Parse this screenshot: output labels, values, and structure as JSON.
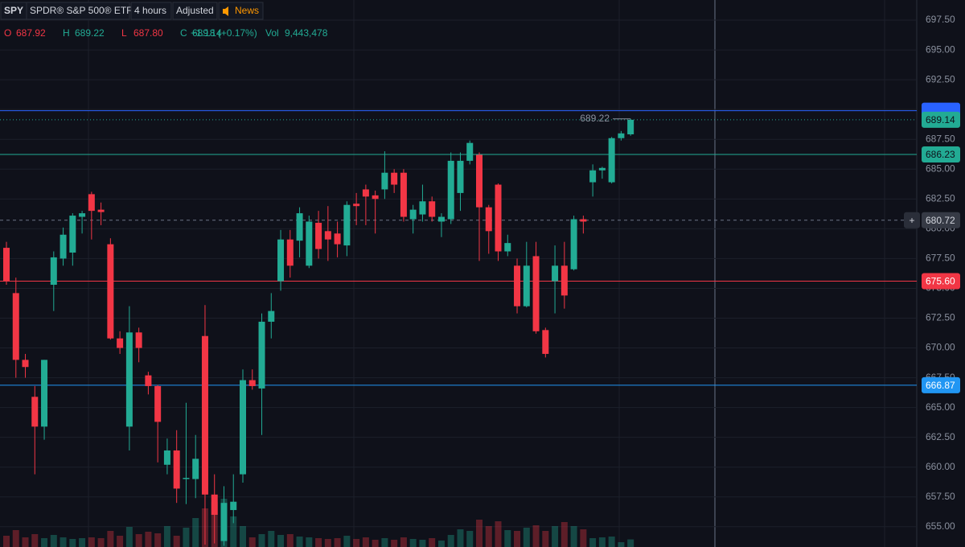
{
  "header": {
    "symbol": "SPY",
    "name": "SPDR® S&P 500® ETF",
    "interval": "4 hours",
    "adjusted": "Adjusted",
    "news": "News",
    "ohlc": [
      {
        "key": "O",
        "label": "687.92",
        "color": "#f23645"
      },
      {
        "key": "H",
        "label": "689.22",
        "color": "#22ab94"
      },
      {
        "key": "L",
        "label": "687.80",
        "color": "#f23645"
      },
      {
        "key": "C",
        "label": "689.14",
        "color": "#22ab94"
      }
    ],
    "change": "+1.18 (+0.17%)",
    "vol_key": "Vol",
    "vol_label": "9,443,478"
  },
  "chart_data": {
    "type": "candlestick",
    "up_color": "#22ab94",
    "down_color": "#f23645",
    "grid": true,
    "open": [
      678.4,
      674.6,
      669.0,
      665.9,
      663.4,
      675.3,
      677.5,
      678.0,
      681.0,
      682.9,
      681.6,
      678.7,
      670.8,
      663.4,
      671.3,
      667.7,
      666.8,
      660.2,
      661.4,
      659.0,
      659.0,
      671.0,
      657.7,
      653.8,
      656.4,
      659.4,
      667.3,
      666.6,
      672.2,
      675.6,
      679.1,
      679.0,
      676.9,
      680.5,
      679.8,
      679.6,
      678.6,
      682.1,
      683.3,
      682.8,
      683.3,
      684.7,
      684.7,
      680.8,
      681.2,
      682.3,
      680.6,
      680.8,
      683.0,
      685.7,
      686.2,
      681.8,
      683.7,
      678.1,
      676.9,
      673.5,
      677.7,
      671.5,
      675.6,
      676.9,
      676.6,
      680.8,
      683.9,
      684.9,
      683.9,
      687.6,
      687.92
    ],
    "high": [
      678.9,
      675.9,
      669.5,
      666.8,
      669.0,
      678.1,
      680.1,
      681.3,
      681.5,
      683.1,
      682.2,
      679.2,
      671.4,
      673.5,
      671.7,
      668.0,
      666.9,
      662.4,
      663.1,
      665.4,
      662.7,
      673.6,
      659.4,
      658.4,
      659.4,
      668.2,
      668.2,
      672.9,
      674.6,
      679.9,
      679.9,
      681.8,
      681.1,
      681.5,
      681.9,
      680.6,
      682.3,
      683.0,
      683.7,
      683.2,
      686.5,
      685.0,
      685.0,
      682.0,
      683.7,
      682.7,
      681.3,
      686.4,
      686.4,
      687.4,
      686.4,
      682.0,
      683.8,
      679.5,
      677.5,
      678.9,
      678.9,
      671.7,
      678.6,
      678.9,
      681.1,
      681.1,
      685.4,
      685.2,
      687.7,
      688.2,
      689.22
    ],
    "low": [
      675.3,
      667.5,
      667.5,
      659.4,
      662.3,
      673.1,
      676.9,
      676.9,
      679.6,
      679.1,
      680.3,
      670.7,
      669.5,
      661.4,
      668.8,
      666.1,
      660.4,
      659.4,
      657.0,
      656.9,
      657.4,
      653.5,
      653.6,
      653.4,
      655.3,
      658.7,
      666.5,
      662.7,
      670.8,
      674.8,
      675.9,
      677.6,
      676.7,
      677.5,
      677.3,
      677.6,
      677.7,
      680.3,
      680.3,
      679.6,
      682.5,
      683.0,
      680.6,
      679.6,
      680.6,
      680.6,
      679.3,
      680.4,
      681.5,
      685.4,
      677.3,
      677.9,
      677.3,
      677.7,
      672.9,
      673.4,
      671.2,
      669.2,
      672.9,
      673.3,
      676.5,
      679.6,
      682.7,
      684.2,
      683.8,
      687.4,
      687.8
    ],
    "close": [
      675.6,
      669.0,
      668.4,
      663.4,
      669.0,
      677.6,
      679.5,
      681.1,
      681.3,
      681.5,
      681.4,
      670.8,
      670.0,
      671.3,
      670.0,
      666.8,
      663.8,
      661.4,
      658.2,
      659.1,
      660.7,
      657.7,
      656.0,
      657.0,
      657.1,
      667.3,
      666.8,
      672.2,
      673.1,
      679.1,
      676.9,
      681.3,
      680.6,
      678.3,
      679.1,
      678.7,
      682.0,
      681.9,
      682.7,
      682.5,
      684.7,
      683.7,
      681.0,
      681.6,
      682.3,
      681.0,
      681.0,
      685.7,
      685.7,
      687.2,
      681.8,
      679.8,
      678.1,
      678.8,
      673.5,
      676.9,
      671.4,
      669.5,
      676.9,
      674.4,
      680.8,
      680.6,
      684.9,
      685.1,
      687.6,
      688.0,
      689.14
    ],
    "volume": [
      14000000,
      21000000,
      12000000,
      16000000,
      11000000,
      15000000,
      12000000,
      10000000,
      11000000,
      12000000,
      11000000,
      20000000,
      14000000,
      25000000,
      16000000,
      19000000,
      17000000,
      26000000,
      14000000,
      24000000,
      36000000,
      48000000,
      56000000,
      60000000,
      38000000,
      26000000,
      12000000,
      16000000,
      20000000,
      15000000,
      16000000,
      13000000,
      12000000,
      11000000,
      10000000,
      11000000,
      14000000,
      10000000,
      12000000,
      9000000,
      11000000,
      9000000,
      12000000,
      10000000,
      9000000,
      11000000,
      8000000,
      15000000,
      22000000,
      20000000,
      34000000,
      26000000,
      32000000,
      21000000,
      20000000,
      24000000,
      27000000,
      20000000,
      26000000,
      31000000,
      26000000,
      22000000,
      11000000,
      12000000,
      13000000,
      6000000,
      9443478
    ],
    "ylim": [
      653.3,
      699.19
    ],
    "yticks": [
      {
        "value": 655,
        "label": "655.00"
      },
      {
        "value": 657.5,
        "label": "657.50"
      },
      {
        "value": 660,
        "label": "660.00"
      },
      {
        "value": 662.5,
        "label": "662.50"
      },
      {
        "value": 665,
        "label": "665.00"
      },
      {
        "value": 667.5,
        "label": "667.50"
      },
      {
        "value": 670,
        "label": "670.00"
      },
      {
        "value": 672.5,
        "label": "672.50"
      },
      {
        "value": 675,
        "label": "675.00"
      },
      {
        "value": 677.5,
        "label": "677.50"
      },
      {
        "value": 680,
        "label": "680.00"
      },
      {
        "value": 682.5,
        "label": "682.50"
      },
      {
        "value": 685,
        "label": "685.00"
      },
      {
        "value": 687.5,
        "label": "687.50"
      },
      {
        "value": 690,
        "label": "690.00"
      },
      {
        "value": 692.5,
        "label": "692.50"
      },
      {
        "value": 695,
        "label": "695.00"
      },
      {
        "value": 697.5,
        "label": "697.50"
      }
    ],
    "price_lines": [
      {
        "value": 689.9,
        "color": "#2962ff"
      },
      {
        "value": 686.23,
        "label": "686.23",
        "color": "#22ab94"
      },
      {
        "value": 675.6,
        "label": "675.60",
        "color": "#f23645"
      },
      {
        "value": 666.87,
        "label": "666.87",
        "color": "#2196f3"
      }
    ],
    "crosshair": 680.72
  }
}
